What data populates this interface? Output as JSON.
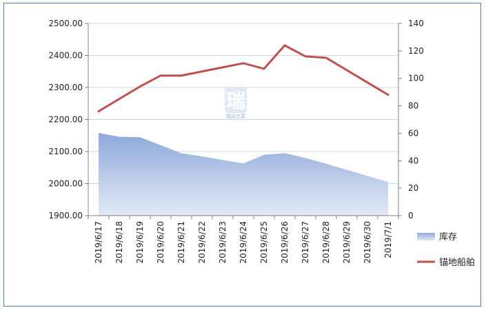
{
  "chart_data": {
    "type": "area+line",
    "categories": [
      "2019/6/17",
      "2019/6/18",
      "2019/6/19",
      "2019/6/20",
      "2019/6/21",
      "2019/6/22",
      "2019/6/23",
      "2019/6/24",
      "2019/6/25",
      "2019/6/26",
      "2019/6/27",
      "2019/6/28",
      "2019/6/29",
      "2019/6/30",
      "2019/7/1"
    ],
    "series": [
      {
        "name": "库存",
        "type": "area",
        "axis": "left",
        "values": [
          2158,
          2146,
          2145,
          2120,
          2095,
          2085,
          2074,
          2063,
          2090,
          2095,
          2080,
          2062,
          2043,
          2024,
          2005
        ]
      },
      {
        "name": "锚地船舶",
        "type": "line",
        "axis": "right",
        "values": [
          76,
          85,
          94,
          102,
          102,
          105,
          108,
          111,
          107,
          124,
          116,
          115,
          106,
          97,
          88
        ]
      }
    ],
    "y_left": {
      "min": 1900,
      "max": 2500,
      "step": 100,
      "ticks": [
        "1900.00",
        "2000.00",
        "2100.00",
        "2200.00",
        "2300.00",
        "2400.00",
        "2500.00"
      ]
    },
    "y_right": {
      "min": 0,
      "max": 140,
      "step": 20,
      "ticks": [
        "0",
        "20",
        "40",
        "60",
        "80",
        "100",
        "120",
        "140"
      ]
    },
    "grid": true,
    "legend_position": "right",
    "colors": {
      "area_top": "#8ea9db",
      "area_bottom": "#e2e9f6",
      "line": "#c0504d",
      "frame": "#4a7ebb",
      "grid": "#c9d8ea"
    },
    "watermark": {
      "icon": "logo-watermark-icon",
      "text": "瑞达仕富"
    }
  }
}
